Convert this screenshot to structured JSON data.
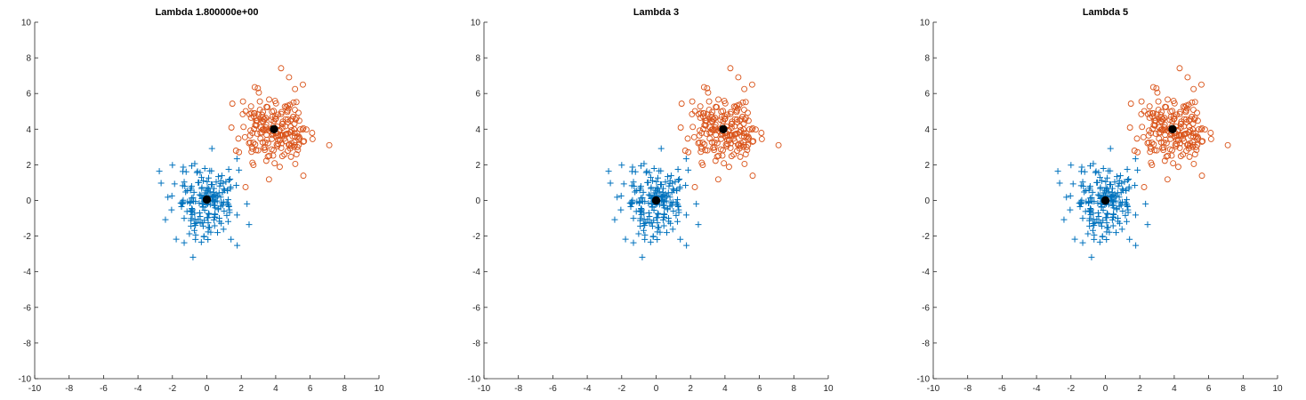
{
  "chart_data": [
    {
      "type": "scatter",
      "title": "Lambda 1.800000e+00",
      "xlabel": "",
      "ylabel": "",
      "xlim": [
        -10,
        10
      ],
      "ylim": [
        -10,
        10
      ],
      "xticks": [
        -10,
        -8,
        -6,
        -4,
        -2,
        0,
        2,
        4,
        6,
        8,
        10
      ],
      "yticks": [
        -10,
        -8,
        -6,
        -4,
        -2,
        0,
        2,
        4,
        6,
        8,
        10
      ],
      "grid": false,
      "series": [
        {
          "marker": "plus",
          "color": "#0072BD",
          "center": [
            0,
            0
          ],
          "spread": 1.0,
          "count": 200
        },
        {
          "marker": "circle",
          "color": "#D95319",
          "center": [
            4,
            4
          ],
          "spread": 1.0,
          "count": 200
        }
      ],
      "centroids": [
        [
          0.0,
          0.05
        ],
        [
          3.9,
          4.0
        ]
      ],
      "centroid_color": "#000000"
    },
    {
      "type": "scatter",
      "title": "Lambda 3",
      "xlabel": "",
      "ylabel": "",
      "xlim": [
        -10,
        10
      ],
      "ylim": [
        -10,
        10
      ],
      "xticks": [
        -10,
        -8,
        -6,
        -4,
        -2,
        0,
        2,
        4,
        6,
        8,
        10
      ],
      "yticks": [
        -10,
        -8,
        -6,
        -4,
        -2,
        0,
        2,
        4,
        6,
        8,
        10
      ],
      "grid": false,
      "series": [
        {
          "marker": "plus",
          "color": "#0072BD",
          "center": [
            0,
            0
          ],
          "spread": 1.0,
          "count": 200
        },
        {
          "marker": "circle",
          "color": "#D95319",
          "center": [
            4,
            4
          ],
          "spread": 1.0,
          "count": 200
        }
      ],
      "centroids": [
        [
          0.0,
          0.0
        ],
        [
          3.9,
          4.0
        ]
      ],
      "centroid_color": "#000000"
    },
    {
      "type": "scatter",
      "title": "Lambda 5",
      "xlabel": "",
      "ylabel": "",
      "xlim": [
        -10,
        10
      ],
      "ylim": [
        -10,
        10
      ],
      "xticks": [
        -10,
        -8,
        -6,
        -4,
        -2,
        0,
        2,
        4,
        6,
        8,
        10
      ],
      "yticks": [
        -10,
        -8,
        -6,
        -4,
        -2,
        0,
        2,
        4,
        6,
        8,
        10
      ],
      "grid": false,
      "series": [
        {
          "marker": "plus",
          "color": "#0072BD",
          "center": [
            0,
            0
          ],
          "spread": 1.0,
          "count": 200
        },
        {
          "marker": "circle",
          "color": "#D95319",
          "center": [
            4,
            4
          ],
          "spread": 1.0,
          "count": 200
        }
      ],
      "centroids": [
        [
          0.0,
          0.0
        ],
        [
          3.9,
          4.0
        ]
      ],
      "centroid_color": "#000000"
    }
  ]
}
